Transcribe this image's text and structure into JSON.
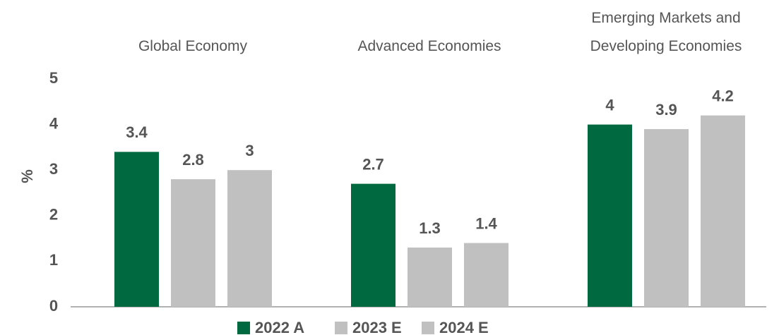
{
  "chart_data": {
    "type": "bar",
    "categories": [
      "Global Economy",
      "Advanced Economies",
      "Emerging Markets and Developing Economies"
    ],
    "series": [
      {
        "name": "2022 A",
        "color": "#006940",
        "values": [
          3.4,
          2.7,
          4.0
        ]
      },
      {
        "name": "2023 E",
        "color": "#c0c0c0",
        "values": [
          2.8,
          1.3,
          3.9
        ]
      },
      {
        "name": "2024 E",
        "color": "#c0c0c0",
        "values": [
          3.0,
          1.4,
          4.2
        ]
      }
    ],
    "ylabel": "%",
    "ylim": [
      0,
      5
    ],
    "yticks": [
      0,
      1,
      2,
      3,
      4,
      5
    ],
    "grid": false,
    "legend": "bottom"
  }
}
